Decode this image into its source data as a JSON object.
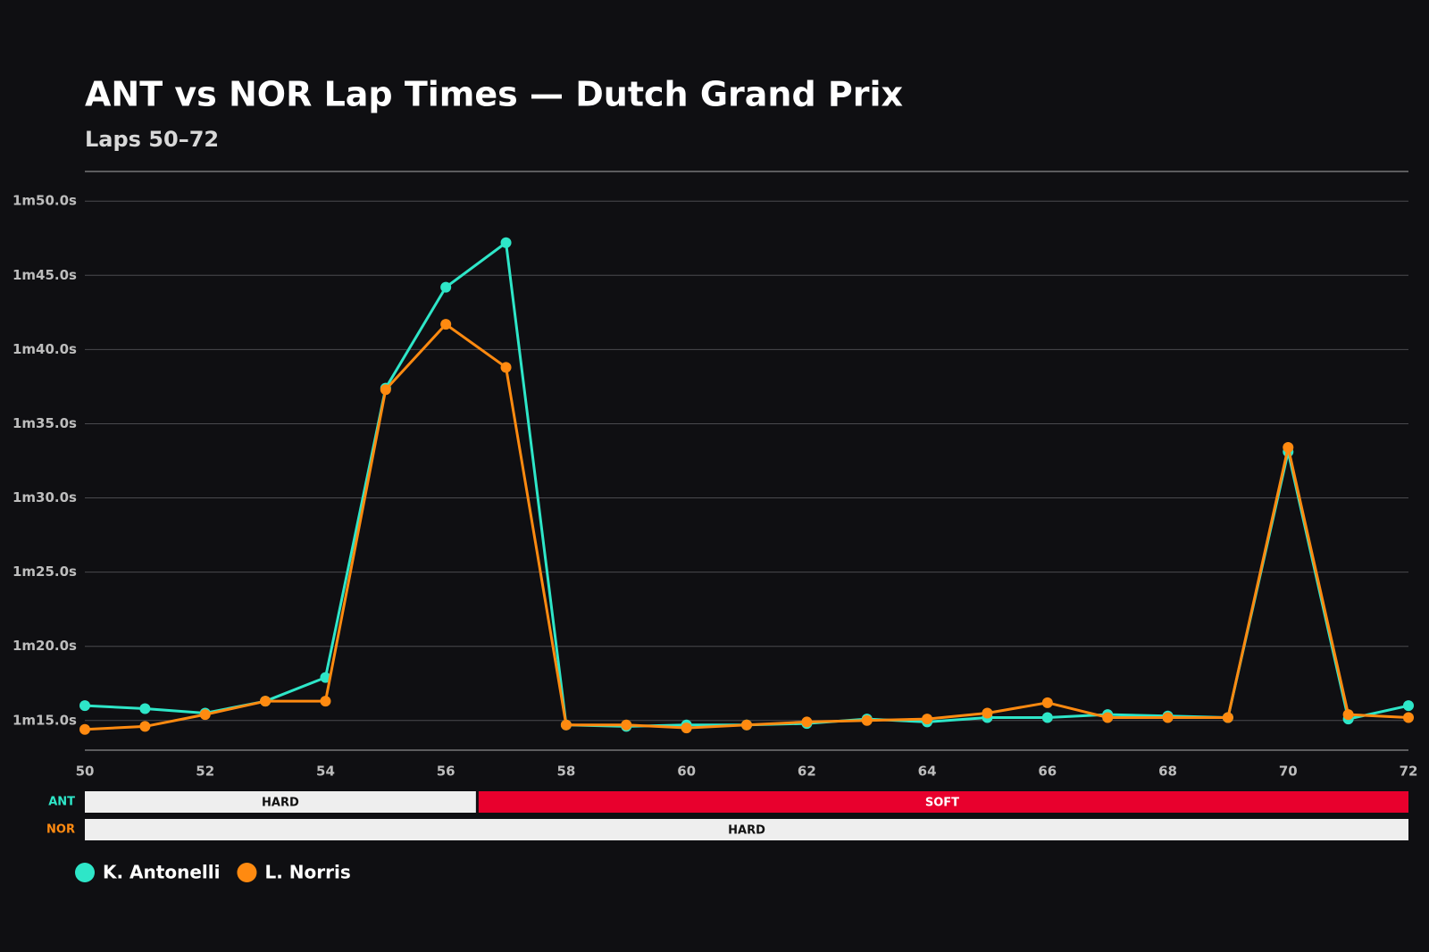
{
  "chart_data": {
    "type": "line",
    "title": "ANT vs NOR Lap Times — Dutch Grand Prix",
    "subtitle": "Laps 50–72",
    "x": [
      50,
      51,
      52,
      53,
      54,
      55,
      56,
      57,
      58,
      59,
      60,
      61,
      62,
      63,
      64,
      65,
      66,
      67,
      68,
      69,
      70,
      71,
      72
    ],
    "series": [
      {
        "name": "K. Antonelli",
        "color": "#2ee6c8",
        "values": [
          76.0,
          75.8,
          75.5,
          76.3,
          77.9,
          97.4,
          104.2,
          107.2,
          74.7,
          74.6,
          74.7,
          74.7,
          74.8,
          75.1,
          74.9,
          75.2,
          75.2,
          75.4,
          75.3,
          75.2,
          93.1,
          75.1,
          76.0
        ]
      },
      {
        "name": "L. Norris",
        "color": "#ff8a10",
        "values": [
          74.4,
          74.6,
          75.4,
          76.3,
          76.3,
          97.3,
          101.7,
          98.8,
          74.7,
          74.7,
          74.5,
          74.7,
          74.9,
          75.0,
          75.1,
          75.5,
          76.2,
          75.2,
          75.2,
          75.2,
          93.4,
          75.4,
          75.2
        ]
      }
    ],
    "xlim": [
      50,
      72
    ],
    "xticks": [
      50,
      52,
      54,
      56,
      58,
      60,
      62,
      64,
      66,
      68,
      70,
      72
    ],
    "ylim": [
      73,
      112
    ],
    "yticks": [
      {
        "value": 75,
        "label": "1m15.0s"
      },
      {
        "value": 80,
        "label": "1m20.0s"
      },
      {
        "value": 85,
        "label": "1m25.0s"
      },
      {
        "value": 90,
        "label": "1m30.0s"
      },
      {
        "value": 95,
        "label": "1m35.0s"
      },
      {
        "value": 100,
        "label": "1m40.0s"
      },
      {
        "value": 105,
        "label": "1m45.0s"
      },
      {
        "value": 110,
        "label": "1m50.0s"
      }
    ],
    "grid": true,
    "tyre_stints": [
      {
        "label": "ANT",
        "color": "#2ee6c8",
        "stints": [
          {
            "compound": "HARD",
            "from": 50,
            "to": 56.5,
            "color": "#eeeeee",
            "text_color": "#111111"
          },
          {
            "compound": "SOFT",
            "from": 56.5,
            "to": 72,
            "color": "#e8002d",
            "text_color": "#ffffff"
          }
        ]
      },
      {
        "label": "NOR",
        "color": "#ff8a10",
        "stints": [
          {
            "compound": "HARD",
            "from": 50,
            "to": 72,
            "color": "#eeeeee",
            "text_color": "#111111"
          }
        ]
      }
    ]
  }
}
